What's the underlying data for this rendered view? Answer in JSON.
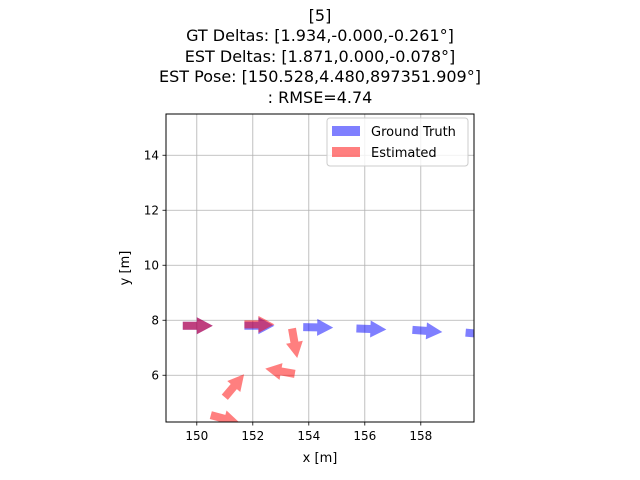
{
  "chart_data": {
    "type": "scatter",
    "title_lines": [
      "[5]",
      "GT Deltas: [1.934,-0.000,-0.261°]",
      "EST Deltas: [1.871,0.000,-0.078°]",
      "EST Pose: [150.528,4.480,897351.909°]",
      ": RMSE=4.74"
    ],
    "xlabel": "x [m]",
    "ylabel": "y [m]",
    "xlim": [
      148.9,
      159.9
    ],
    "ylim": [
      4.3,
      15.5
    ],
    "xticks": [
      150,
      152,
      154,
      156,
      158
    ],
    "yticks": [
      6,
      8,
      10,
      12,
      14
    ],
    "grid": true,
    "legend_position": "top-right",
    "series": [
      {
        "name": "Ground Truth",
        "color": "#0000ff",
        "alpha": 0.5,
        "poses": [
          {
            "x": 149.5,
            "y": 7.8,
            "heading_deg": 0
          },
          {
            "x": 151.7,
            "y": 7.8,
            "heading_deg": 0
          },
          {
            "x": 153.8,
            "y": 7.75,
            "heading_deg": -1
          },
          {
            "x": 155.7,
            "y": 7.7,
            "heading_deg": -2
          },
          {
            "x": 157.7,
            "y": 7.65,
            "heading_deg": -4
          },
          {
            "x": 159.6,
            "y": 7.55,
            "heading_deg": -5
          }
        ]
      },
      {
        "name": "Estimated",
        "color": "#ff0000",
        "alpha": 0.5,
        "poses": [
          {
            "x": 149.5,
            "y": 7.8,
            "heading_deg": 0
          },
          {
            "x": 151.7,
            "y": 7.85,
            "heading_deg": 0
          },
          {
            "x": 153.4,
            "y": 7.7,
            "heading_deg": -80
          },
          {
            "x": 153.5,
            "y": 6.05,
            "heading_deg": 170
          },
          {
            "x": 151.0,
            "y": 5.2,
            "heading_deg": 50
          },
          {
            "x": 150.5,
            "y": 4.55,
            "heading_deg": -15
          }
        ]
      }
    ]
  }
}
